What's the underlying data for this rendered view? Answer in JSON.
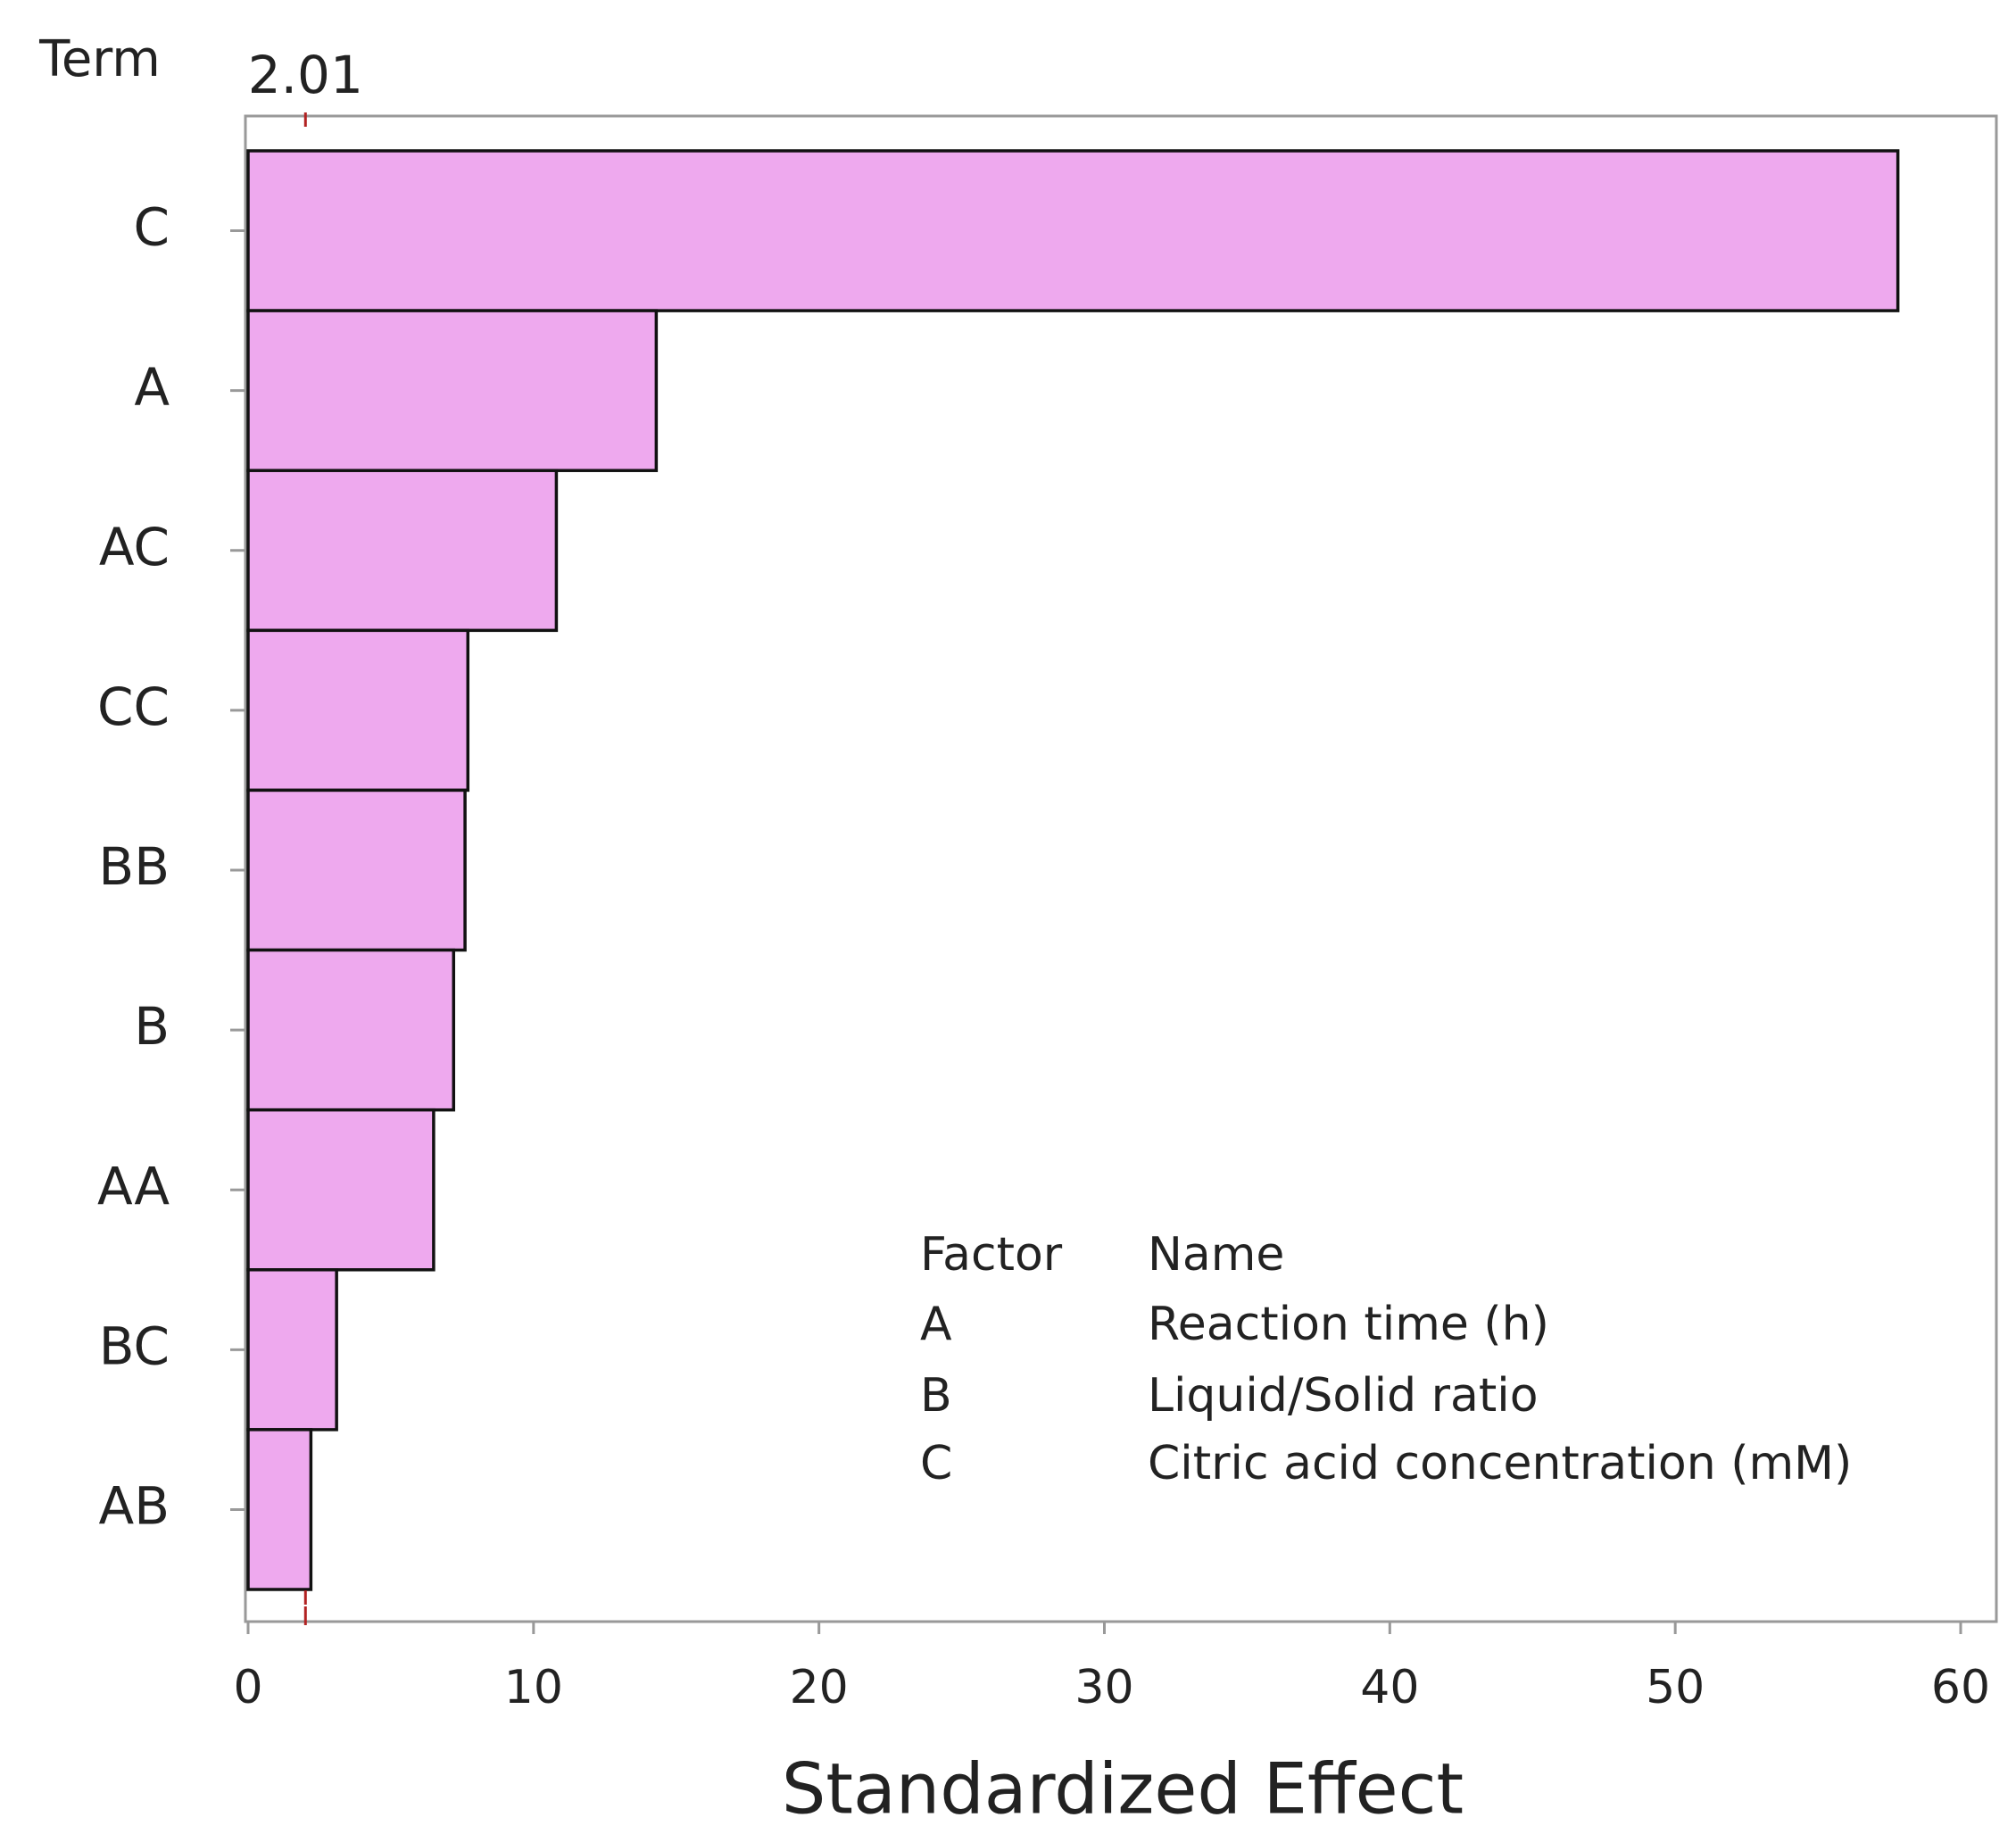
{
  "chart_data": {
    "type": "bar",
    "orientation": "horizontal",
    "y_label": "Term",
    "x_label": "Standardized Effect",
    "categories": [
      "C",
      "A",
      "AC",
      "CC",
      "BB",
      "B",
      "AA",
      "BC",
      "AB"
    ],
    "values": [
      57.8,
      14.3,
      10.8,
      7.7,
      7.6,
      7.2,
      6.5,
      3.1,
      2.2
    ],
    "color": "#eea9ee",
    "xlim": [
      0,
      61.3
    ],
    "xticks": [
      0,
      10,
      20,
      30,
      40,
      50,
      60
    ],
    "reference_line": 2.01,
    "reference_color": "#b22222",
    "factor_table": {
      "header": [
        "Factor",
        "Name"
      ],
      "rows": [
        [
          "A",
          "Reaction time (h)"
        ],
        [
          "B",
          "Liquid/Solid ratio"
        ],
        [
          "C",
          "Citric acid concentration (mM)"
        ]
      ]
    }
  }
}
